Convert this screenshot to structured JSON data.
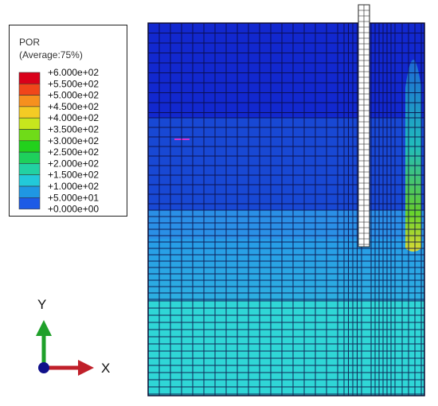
{
  "legend": {
    "title": "POR",
    "subtitle": "(Average:75%)",
    "levels": [
      {
        "label": "+6.000e+02",
        "color": "#d9001a"
      },
      {
        "label": "+5.500e+02",
        "color": "#f0461a"
      },
      {
        "label": "+5.000e+02",
        "color": "#f6901e"
      },
      {
        "label": "+4.500e+02",
        "color": "#f4cb24"
      },
      {
        "label": "+4.000e+02",
        "color": "#c7e61d"
      },
      {
        "label": "+3.500e+02",
        "color": "#6fdb18"
      },
      {
        "label": "+3.000e+02",
        "color": "#22d11c"
      },
      {
        "label": "+2.500e+02",
        "color": "#1ed05c"
      },
      {
        "label": "+2.000e+02",
        "color": "#22d1a2"
      },
      {
        "label": "+1.500e+02",
        "color": "#22c9d9"
      },
      {
        "label": "+1.000e+02",
        "color": "#1f97e3"
      },
      {
        "label": "+5.000e+01",
        "color": "#1d5be6"
      },
      {
        "label": "+0.000e+00",
        "color": "#1515e0"
      }
    ]
  },
  "triad": {
    "y_label": "Y",
    "x_label": "X"
  },
  "mesh": {
    "bands": [
      {
        "name": "top",
        "color": "#1228cf"
      },
      {
        "name": "upper-middle",
        "color": "#1848d4"
      },
      {
        "name": "lower-middle",
        "color": "#2a8fe6"
      },
      {
        "name": "bottom",
        "color": "#2fd6d6"
      }
    ],
    "pile_color": "#ffffff",
    "plume_colors": [
      "#1e6fd8",
      "#22c9b8",
      "#6fdb18",
      "#f0e020"
    ]
  }
}
